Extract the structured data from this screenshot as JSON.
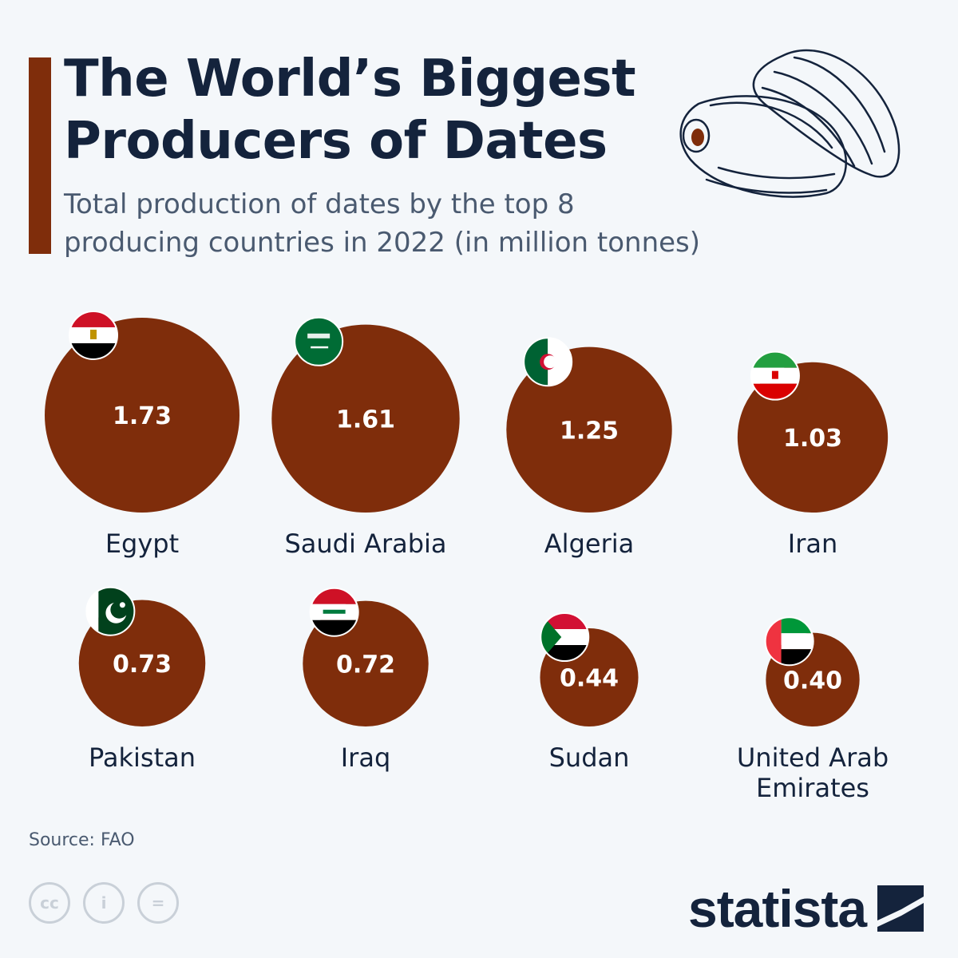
{
  "header": {
    "title_line1": "The World’s Biggest",
    "title_line2": "Producers of Dates",
    "subtitle_line1": "Total production of dates by the top 8",
    "subtitle_line2": "producing countries in 2022 (in million tonnes)"
  },
  "colors": {
    "bubble": "#7f2d0b",
    "title": "#14233c",
    "subtitle": "#4a5a70",
    "background": "#f4f7fa"
  },
  "chart_data": {
    "type": "bubble",
    "title": "The World’s Biggest Producers of Dates",
    "subtitle": "Total production of dates by the top 8 producing countries in 2022 (in million tonnes)",
    "unit": "million tonnes",
    "categories": [
      "Egypt",
      "Saudi Arabia",
      "Algeria",
      "Iran",
      "Pakistan",
      "Iraq",
      "Sudan",
      "United Arab Emirates"
    ],
    "values": [
      1.73,
      1.61,
      1.25,
      1.03,
      0.73,
      0.72,
      0.44,
      0.4
    ],
    "value_labels": [
      "1.73",
      "1.61",
      "1.25",
      "1.03",
      "0.73",
      "0.72",
      "0.44",
      "0.40"
    ],
    "label_lines": [
      [
        "Egypt"
      ],
      [
        "Saudi Arabia"
      ],
      [
        "Algeria"
      ],
      [
        "Iran"
      ],
      [
        "Pakistan"
      ],
      [
        "Iraq"
      ],
      [
        "Sudan"
      ],
      [
        "United Arab",
        "Emirates"
      ]
    ],
    "flags": [
      "egypt-flag",
      "saudi-arabia-flag",
      "algeria-flag",
      "iran-flag",
      "pakistan-flag",
      "iraq-flag",
      "sudan-flag",
      "uae-flag"
    ]
  },
  "footer": {
    "source": "Source: FAO",
    "brand": "statista",
    "license_icons": [
      "cc-icon",
      "attribution-icon",
      "no-derivatives-icon"
    ],
    "license_glyphs": [
      "cc",
      "i",
      "="
    ]
  }
}
